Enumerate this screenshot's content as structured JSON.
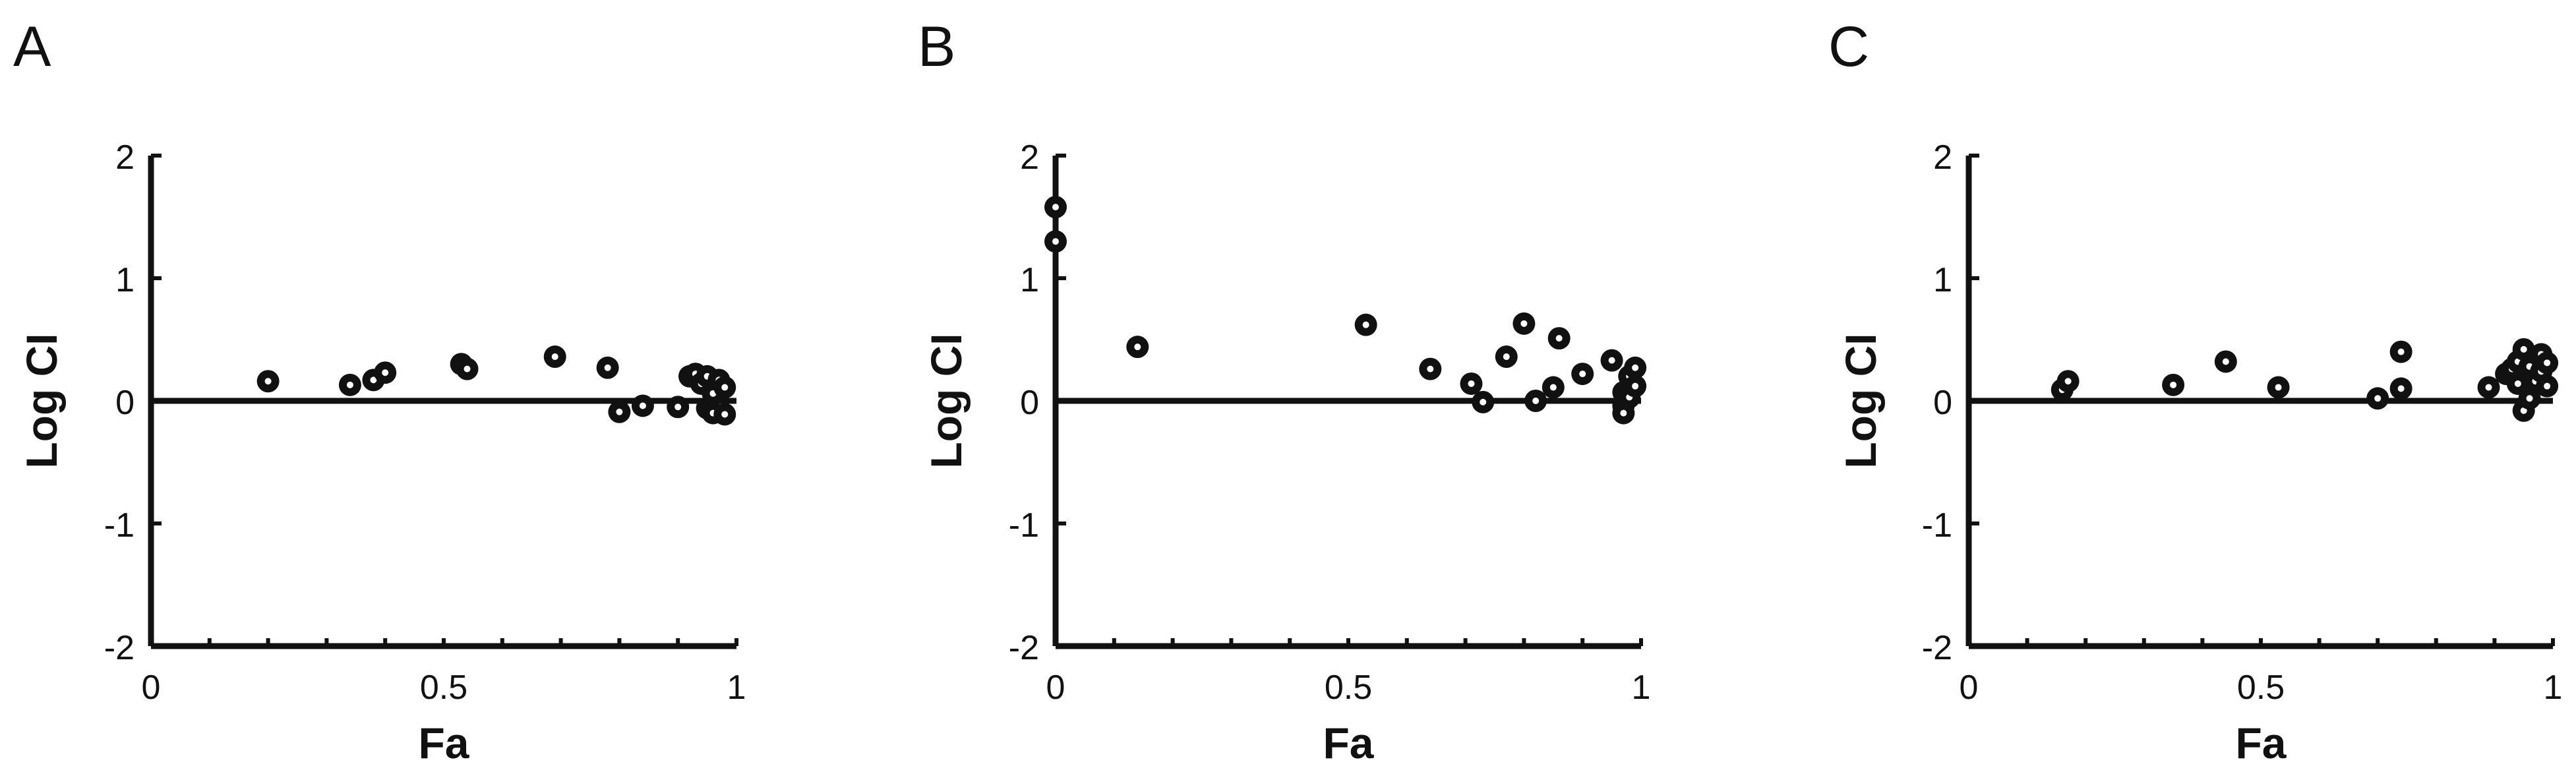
{
  "figure": {
    "panels": [
      "A",
      "B",
      "C"
    ],
    "color": "#111111",
    "background": "#ffffff"
  },
  "chart_data": [
    {
      "type": "scatter",
      "panel": "A",
      "xlabel": "Fa",
      "ylabel": "Log CI",
      "xlim": [
        0,
        1
      ],
      "ylim": [
        -2,
        2
      ],
      "xticks": [
        0,
        0.5,
        1
      ],
      "xtick_labels": [
        "0",
        "0.5",
        "1"
      ],
      "yticks": [
        -2,
        -1,
        0,
        1,
        2
      ],
      "ytick_labels": [
        "-2",
        "-1",
        "0",
        "1",
        "2"
      ],
      "reference_line": 0,
      "grid": false,
      "points": [
        {
          "x": 0.2,
          "y": 0.16
        },
        {
          "x": 0.34,
          "y": 0.13
        },
        {
          "x": 0.38,
          "y": 0.17
        },
        {
          "x": 0.4,
          "y": 0.23
        },
        {
          "x": 0.53,
          "y": 0.3
        },
        {
          "x": 0.54,
          "y": 0.26
        },
        {
          "x": 0.69,
          "y": 0.36
        },
        {
          "x": 0.78,
          "y": 0.27
        },
        {
          "x": 0.8,
          "y": -0.09
        },
        {
          "x": 0.84,
          "y": -0.04
        },
        {
          "x": 0.9,
          "y": -0.05
        },
        {
          "x": 0.92,
          "y": 0.2
        },
        {
          "x": 0.93,
          "y": 0.22
        },
        {
          "x": 0.94,
          "y": 0.14
        },
        {
          "x": 0.95,
          "y": 0.2
        },
        {
          "x": 0.95,
          "y": -0.06
        },
        {
          "x": 0.96,
          "y": 0.06
        },
        {
          "x": 0.96,
          "y": -0.1
        },
        {
          "x": 0.97,
          "y": 0.17
        },
        {
          "x": 0.98,
          "y": 0.11
        },
        {
          "x": 0.98,
          "y": -0.11
        }
      ]
    },
    {
      "type": "scatter",
      "panel": "B",
      "xlabel": "Fa",
      "ylabel": "Log CI",
      "xlim": [
        0,
        1
      ],
      "ylim": [
        -2,
        2
      ],
      "xticks": [
        0,
        0.5,
        1
      ],
      "xtick_labels": [
        "0",
        "0.5",
        "1"
      ],
      "yticks": [
        -2,
        -1,
        0,
        1,
        2
      ],
      "ytick_labels": [
        "-2",
        "-1",
        "0",
        "1",
        "2"
      ],
      "reference_line": 0,
      "grid": false,
      "points": [
        {
          "x": 0.0,
          "y": 1.58
        },
        {
          "x": 0.0,
          "y": 1.3
        },
        {
          "x": 0.14,
          "y": 0.44
        },
        {
          "x": 0.53,
          "y": 0.62
        },
        {
          "x": 0.64,
          "y": 0.26
        },
        {
          "x": 0.71,
          "y": 0.14
        },
        {
          "x": 0.73,
          "y": -0.01
        },
        {
          "x": 0.77,
          "y": 0.36
        },
        {
          "x": 0.8,
          "y": 0.63
        },
        {
          "x": 0.82,
          "y": 0.0
        },
        {
          "x": 0.85,
          "y": 0.11
        },
        {
          "x": 0.86,
          "y": 0.51
        },
        {
          "x": 0.9,
          "y": 0.22
        },
        {
          "x": 0.95,
          "y": 0.33
        },
        {
          "x": 0.97,
          "y": 0.07
        },
        {
          "x": 0.97,
          "y": -0.04
        },
        {
          "x": 0.97,
          "y": -0.1
        },
        {
          "x": 0.98,
          "y": 0.2
        },
        {
          "x": 0.98,
          "y": 0.03
        },
        {
          "x": 0.99,
          "y": 0.27
        },
        {
          "x": 0.99,
          "y": 0.12
        }
      ]
    },
    {
      "type": "scatter",
      "panel": "C",
      "xlabel": "Fa",
      "ylabel": "Log CI",
      "xlim": [
        0,
        1
      ],
      "ylim": [
        -2,
        2
      ],
      "xticks": [
        0,
        0.5,
        1
      ],
      "xtick_labels": [
        "0",
        "0.5",
        "1"
      ],
      "yticks": [
        -2,
        -1,
        0,
        1,
        2
      ],
      "ytick_labels": [
        "-2",
        "-1",
        "0",
        "1",
        "2"
      ],
      "reference_line": 0,
      "grid": false,
      "points": [
        {
          "x": 0.16,
          "y": 0.09
        },
        {
          "x": 0.17,
          "y": 0.16
        },
        {
          "x": 0.35,
          "y": 0.13
        },
        {
          "x": 0.44,
          "y": 0.32
        },
        {
          "x": 0.53,
          "y": 0.11
        },
        {
          "x": 0.7,
          "y": 0.02
        },
        {
          "x": 0.74,
          "y": 0.4
        },
        {
          "x": 0.74,
          "y": 0.1
        },
        {
          "x": 0.89,
          "y": 0.11
        },
        {
          "x": 0.92,
          "y": 0.22
        },
        {
          "x": 0.93,
          "y": 0.26
        },
        {
          "x": 0.94,
          "y": 0.14
        },
        {
          "x": 0.94,
          "y": 0.32
        },
        {
          "x": 0.95,
          "y": 0.42
        },
        {
          "x": 0.95,
          "y": -0.08
        },
        {
          "x": 0.96,
          "y": 0.28
        },
        {
          "x": 0.96,
          "y": 0.02
        },
        {
          "x": 0.97,
          "y": 0.16
        },
        {
          "x": 0.98,
          "y": 0.38
        },
        {
          "x": 0.98,
          "y": 0.24
        },
        {
          "x": 0.99,
          "y": 0.12
        },
        {
          "x": 0.99,
          "y": 0.31
        }
      ]
    }
  ]
}
